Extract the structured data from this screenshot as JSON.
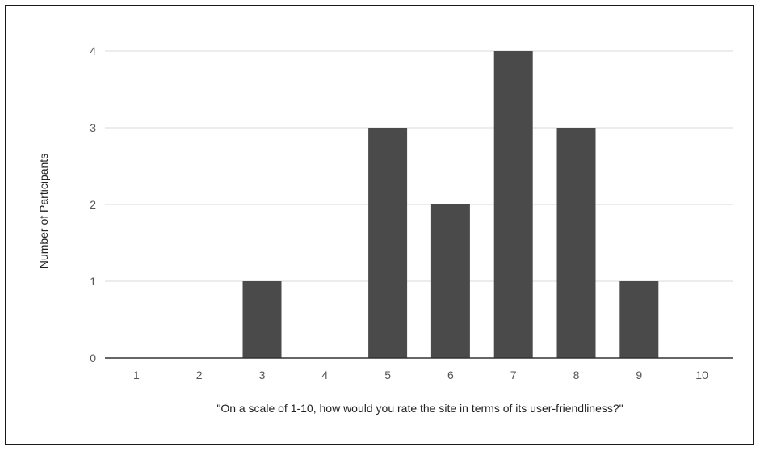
{
  "chart_data": {
    "type": "bar",
    "categories": [
      "1",
      "2",
      "3",
      "4",
      "5",
      "6",
      "7",
      "8",
      "9",
      "10"
    ],
    "values": [
      0,
      0,
      1,
      0,
      3,
      2,
      4,
      3,
      1,
      0
    ],
    "title": "",
    "xlabel": "\"On a scale of 1-10, how would you rate the site in terms of its user-friendliness?\"",
    "ylabel": "Number of Participants",
    "ylim": [
      0,
      4
    ],
    "yticks": [
      "0",
      "1",
      "2",
      "3",
      "4"
    ],
    "grid": true,
    "bar_color": "#4a4a4a",
    "grid_color": "#d9d9d9",
    "axis_color": "#333333"
  }
}
